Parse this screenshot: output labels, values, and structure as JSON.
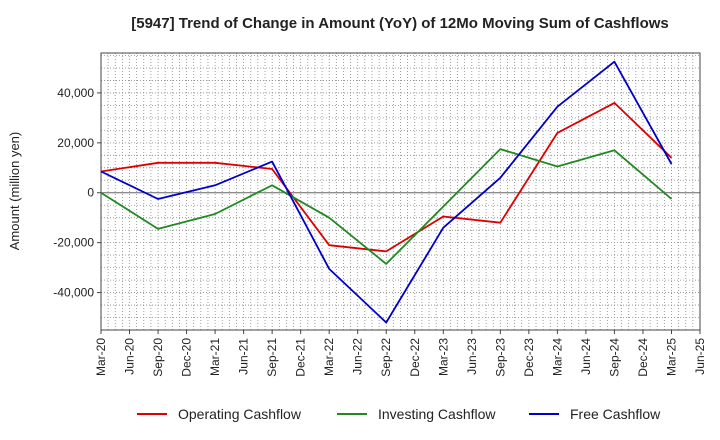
{
  "chart_data": {
    "type": "line",
    "title": "[5947]  Trend of Change in Amount (YoY) of 12Mo Moving Sum of Cashflows",
    "xlabel": "",
    "ylabel": "Amount (million yen)",
    "ylim": [
      -55000,
      56000
    ],
    "yticks": [
      -40000,
      -20000,
      0,
      20000,
      40000
    ],
    "ytick_labels": [
      "-40,000",
      "-20,000",
      "0",
      "20,000",
      "40,000"
    ],
    "grid": true,
    "legend_position": "bottom-center",
    "categories": [
      "Mar-20",
      "Jun-20",
      "Sep-20",
      "Dec-20",
      "Mar-21",
      "Jun-21",
      "Sep-21",
      "Dec-21",
      "Mar-22",
      "Jun-22",
      "Sep-22",
      "Dec-22",
      "Mar-23",
      "Jun-23",
      "Sep-23",
      "Dec-23",
      "Mar-24",
      "Jun-24",
      "Sep-24",
      "Dec-24",
      "Mar-25",
      "Jun-25"
    ],
    "series": [
      {
        "name": "Operating Cashflow",
        "color": "#dd0000",
        "values": [
          8500,
          null,
          12000,
          null,
          12000,
          null,
          9500,
          null,
          -21000,
          null,
          -23500,
          null,
          -9500,
          null,
          -12000,
          null,
          24000,
          null,
          36000,
          null,
          14000,
          null
        ]
      },
      {
        "name": "Investing Cashflow",
        "color": "#228822",
        "values": [
          0,
          null,
          -14500,
          null,
          -8500,
          null,
          3000,
          null,
          -10000,
          null,
          -28500,
          null,
          -5500,
          null,
          17500,
          null,
          10500,
          null,
          17000,
          null,
          -2500,
          null
        ]
      },
      {
        "name": "Free Cashflow",
        "color": "#0000cc",
        "values": [
          8500,
          null,
          -2500,
          null,
          3000,
          null,
          12500,
          null,
          -30500,
          null,
          -52000,
          null,
          -14000,
          null,
          6000,
          null,
          34500,
          null,
          52500,
          null,
          11500,
          null
        ]
      }
    ]
  }
}
